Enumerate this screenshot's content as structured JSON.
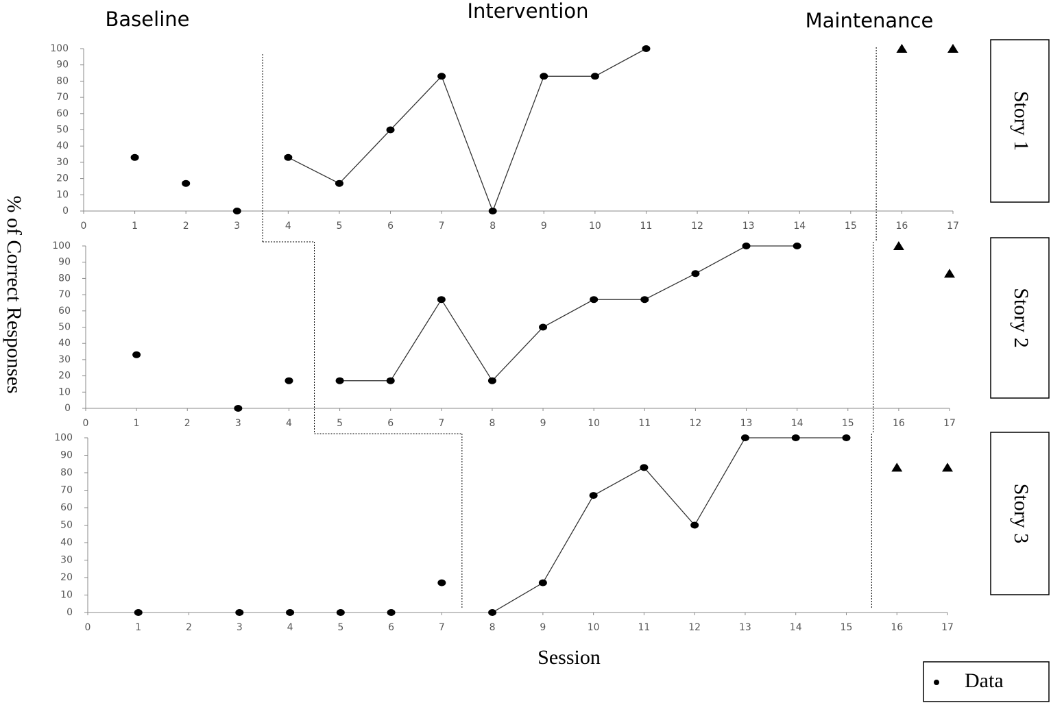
{
  "figure": {
    "phases": [
      "Baseline",
      "Intervention",
      "Maintenance"
    ],
    "ylabel": "% of Correct Responses",
    "xlabel": "Session",
    "legend": "Data"
  },
  "chart_data": [
    {
      "type": "line",
      "label": "Story 1",
      "xlim": [
        0,
        17
      ],
      "xticks": [
        0,
        1,
        2,
        3,
        4,
        5,
        6,
        7,
        8,
        9,
        10,
        11,
        12,
        13,
        14,
        15,
        16,
        17
      ],
      "ylim": [
        0,
        100
      ],
      "yticks": [
        0,
        10,
        20,
        30,
        40,
        50,
        60,
        70,
        80,
        90,
        100
      ],
      "phase_change": 3.5,
      "maintenance_start": 15.5,
      "color": "#000000",
      "series": [
        {
          "marker": "circle",
          "connect": false,
          "x": [
            1,
            2,
            3
          ],
          "values": [
            33,
            17,
            0
          ]
        },
        {
          "marker": "circle",
          "connect": true,
          "x": [
            4,
            5,
            6,
            7,
            8,
            9,
            10,
            11
          ],
          "values": [
            33,
            17,
            50,
            83,
            0,
            83,
            83,
            100
          ]
        },
        {
          "marker": "triangle",
          "connect": false,
          "x": [
            16,
            17
          ],
          "values": [
            100,
            100
          ]
        }
      ]
    },
    {
      "type": "line",
      "label": "Story 2",
      "xlim": [
        0,
        17
      ],
      "xticks": [
        0,
        1,
        2,
        3,
        4,
        5,
        6,
        7,
        8,
        9,
        10,
        11,
        12,
        13,
        14,
        15,
        16,
        17
      ],
      "ylim": [
        0,
        100
      ],
      "yticks": [
        0,
        10,
        20,
        30,
        40,
        50,
        60,
        70,
        80,
        90,
        100
      ],
      "phase_change": 4.5,
      "maintenance_start": 15.5,
      "color": "#000000",
      "series": [
        {
          "marker": "circle",
          "connect": false,
          "x": [
            1,
            3,
            4
          ],
          "values": [
            33,
            0,
            17
          ]
        },
        {
          "marker": "circle",
          "connect": true,
          "x": [
            5,
            6,
            7,
            8,
            9,
            10,
            11,
            12,
            13,
            14
          ],
          "values": [
            17,
            17,
            67,
            17,
            50,
            67,
            67,
            83,
            100,
            100
          ]
        },
        {
          "marker": "triangle",
          "connect": false,
          "x": [
            16,
            17
          ],
          "values": [
            100,
            83
          ]
        }
      ]
    },
    {
      "type": "line",
      "label": "Story 3",
      "xlim": [
        0,
        17
      ],
      "xticks": [
        0,
        1,
        2,
        3,
        4,
        5,
        6,
        7,
        8,
        9,
        10,
        11,
        12,
        13,
        14,
        15,
        16,
        17
      ],
      "ylim": [
        0,
        100
      ],
      "yticks": [
        0,
        10,
        20,
        30,
        40,
        50,
        60,
        70,
        80,
        90,
        100
      ],
      "phase_change": 7.4,
      "maintenance_start": 15.5,
      "color": "#000000",
      "series": [
        {
          "marker": "circle",
          "connect": false,
          "x": [
            1,
            3,
            4,
            5,
            6,
            7
          ],
          "values": [
            0,
            0,
            0,
            0,
            0,
            17
          ]
        },
        {
          "marker": "circle",
          "connect": true,
          "x": [
            8,
            9,
            10,
            11,
            12,
            13,
            14,
            15
          ],
          "values": [
            0,
            17,
            67,
            83,
            50,
            100,
            100,
            100
          ]
        },
        {
          "marker": "triangle",
          "connect": false,
          "x": [
            16,
            17
          ],
          "values": [
            83,
            83
          ]
        }
      ]
    }
  ]
}
